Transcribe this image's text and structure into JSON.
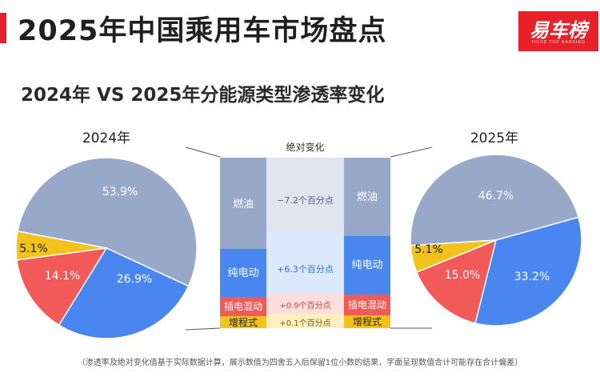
{
  "header": {
    "title": "2025年中国乘用车市场盘点",
    "subtitle": "2024年 VS 2025年分能源类型渗透率变化",
    "logo_text": "易车榜",
    "logo_sub": "YICHE TOP RANKING"
  },
  "center": {
    "heading": "绝对变化"
  },
  "footnote": "（渗透率及绝对变化值基于实际数据计算，展示数值为四舍五入后保留1位小数的结果，字面呈现数值合计可能存在合计偏差）",
  "colors": {
    "fuel": "#97a8c8",
    "bev": "#4a86f0",
    "phev": "#f25a5a",
    "erev": "#f3c21c",
    "fuel_light": "#dfe4ee",
    "bev_light": "#dce8fb",
    "phev_light": "#fbdede",
    "erev_light": "#fcf0c2"
  },
  "chart_data": {
    "type": "pie",
    "categories": [
      "燃油",
      "纯电动",
      "插电混动",
      "增程式"
    ],
    "series": [
      {
        "name": "2024年",
        "values": [
          53.9,
          26.9,
          14.1,
          5.1
        ],
        "labels": [
          "53.9%",
          "26.9%",
          "14.1%",
          "5.1%"
        ]
      },
      {
        "name": "2025年",
        "values": [
          46.7,
          33.2,
          15.0,
          5.1
        ],
        "labels": [
          "46.7%",
          "33.2%",
          "15.0%",
          "5.1%"
        ]
      }
    ],
    "changes": [
      {
        "category": "燃油",
        "value": -7.2,
        "label": "−7.2个百分点"
      },
      {
        "category": "纯电动",
        "value": 6.3,
        "label": "+6.3个百分点"
      },
      {
        "category": "插电混动",
        "value": 0.9,
        "label": "+0.9个百分点"
      },
      {
        "category": "增程式",
        "value": 0.1,
        "label": "+0.1个百分点"
      }
    ],
    "title": "2024年 VS 2025年分能源类型渗透率变化"
  }
}
